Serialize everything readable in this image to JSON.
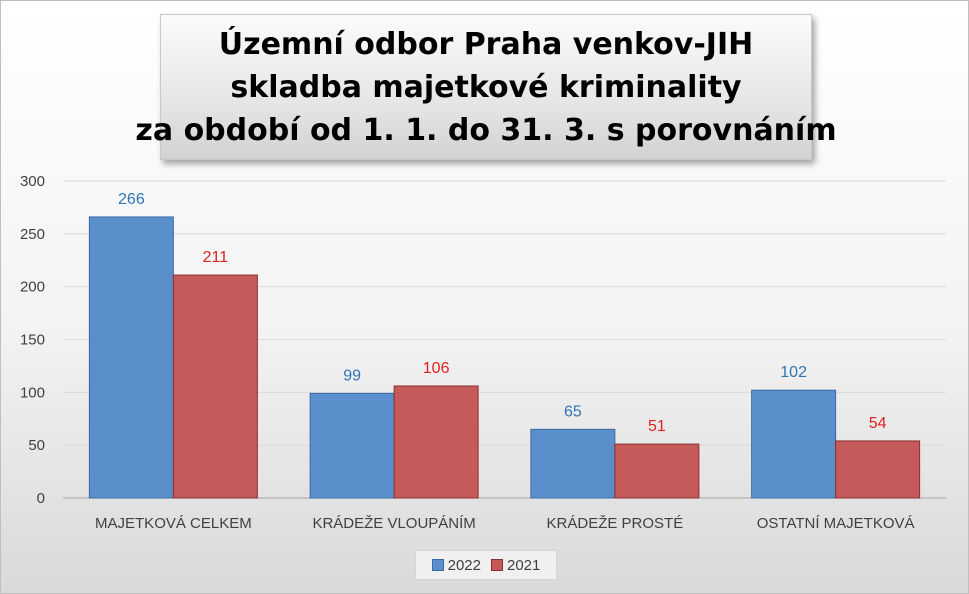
{
  "title_lines": [
    "Územní odbor Praha venkov-JIH",
    "skladba majetkové kriminality",
    "za období od 1. 1. do 31. 3. s porovnáním"
  ],
  "chart_data": {
    "type": "bar",
    "title": "Územní odbor Praha venkov-JIH skladba majetkové kriminality za období od 1. 1. do 31. 3. s porovnáním",
    "categories": [
      "MAJETKOVÁ CELKEM",
      "KRÁDEŽE VLOUPÁNÍM",
      "KRÁDEŽE PROSTÉ",
      "OSTATNÍ MAJETKOVÁ"
    ],
    "series": [
      {
        "name": "2022",
        "values": [
          266,
          99,
          65,
          102
        ],
        "color": "#5b8fcc",
        "stroke": "#3c6aa8",
        "label_color": "#2e75b6"
      },
      {
        "name": "2021",
        "values": [
          211,
          106,
          51,
          54
        ],
        "color": "#c55a5a",
        "stroke": "#8c2f2f",
        "label_color": "#e02020"
      }
    ],
    "ylim": [
      0,
      300
    ],
    "yticks": [
      0,
      50,
      100,
      150,
      200,
      250,
      300
    ],
    "grid": true,
    "legend_position": "bottom",
    "xlabel": "",
    "ylabel": ""
  }
}
